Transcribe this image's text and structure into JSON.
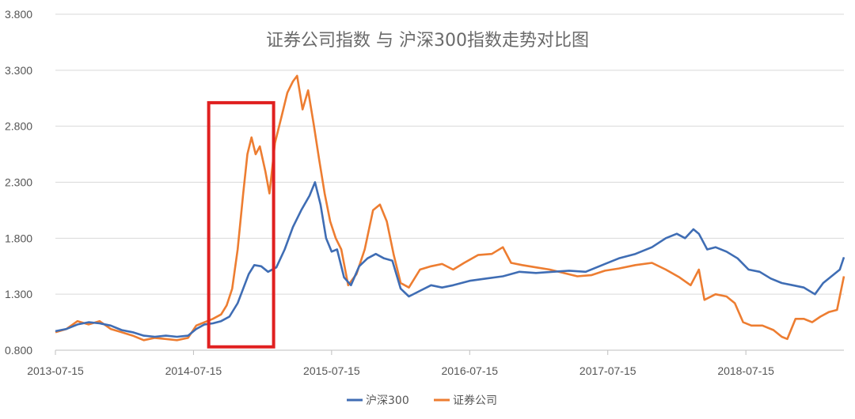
{
  "chart_data": {
    "type": "line",
    "title": "证券公司指数 与 沪深300指数走势对比图",
    "xlabel": "",
    "ylabel": "",
    "ylim": [
      0.8,
      3.8
    ],
    "yticks": [
      "0.800",
      "1.300",
      "1.800",
      "2.300",
      "2.800",
      "3.300",
      "3.800"
    ],
    "xticks": [
      {
        "label": "2013-07-15",
        "x": 2013.54
      },
      {
        "label": "2014-07-15",
        "x": 2014.54
      },
      {
        "label": "2015-07-15",
        "x": 2015.54
      },
      {
        "label": "2016-07-15",
        "x": 2016.54
      },
      {
        "label": "2017-07-15",
        "x": 2017.54
      },
      {
        "label": "2018-07-15",
        "x": 2018.54
      }
    ],
    "xlim": [
      2013.54,
      2019.25
    ],
    "grid": "horizontal",
    "legend_position": "bottom",
    "highlight_box": {
      "x_start": 2014.65,
      "x_end": 2015.12,
      "y_bottom": 0.83,
      "y_top": 3.01,
      "color": "#e02020"
    },
    "series": [
      {
        "name": "沪深300",
        "color": "#3f6db4",
        "points": [
          [
            2013.54,
            0.97
          ],
          [
            2013.62,
            0.99
          ],
          [
            2013.7,
            1.03
          ],
          [
            2013.78,
            1.05
          ],
          [
            2013.86,
            1.04
          ],
          [
            2013.94,
            1.02
          ],
          [
            2014.02,
            0.98
          ],
          [
            2014.1,
            0.96
          ],
          [
            2014.18,
            0.93
          ],
          [
            2014.26,
            0.92
          ],
          [
            2014.34,
            0.93
          ],
          [
            2014.42,
            0.92
          ],
          [
            2014.5,
            0.93
          ],
          [
            2014.56,
            0.99
          ],
          [
            2014.62,
            1.03
          ],
          [
            2014.68,
            1.04
          ],
          [
            2014.74,
            1.06
          ],
          [
            2014.8,
            1.1
          ],
          [
            2014.86,
            1.22
          ],
          [
            2014.9,
            1.35
          ],
          [
            2014.94,
            1.48
          ],
          [
            2014.98,
            1.56
          ],
          [
            2015.03,
            1.55
          ],
          [
            2015.08,
            1.5
          ],
          [
            2015.14,
            1.54
          ],
          [
            2015.2,
            1.7
          ],
          [
            2015.26,
            1.9
          ],
          [
            2015.32,
            2.05
          ],
          [
            2015.38,
            2.18
          ],
          [
            2015.42,
            2.3
          ],
          [
            2015.46,
            2.1
          ],
          [
            2015.5,
            1.8
          ],
          [
            2015.54,
            1.68
          ],
          [
            2015.58,
            1.7
          ],
          [
            2015.63,
            1.45
          ],
          [
            2015.68,
            1.38
          ],
          [
            2015.74,
            1.55
          ],
          [
            2015.8,
            1.62
          ],
          [
            2015.86,
            1.66
          ],
          [
            2015.92,
            1.62
          ],
          [
            2015.98,
            1.6
          ],
          [
            2016.04,
            1.35
          ],
          [
            2016.1,
            1.28
          ],
          [
            2016.18,
            1.33
          ],
          [
            2016.26,
            1.38
          ],
          [
            2016.34,
            1.36
          ],
          [
            2016.42,
            1.38
          ],
          [
            2016.54,
            1.42
          ],
          [
            2016.66,
            1.44
          ],
          [
            2016.78,
            1.46
          ],
          [
            2016.9,
            1.5
          ],
          [
            2017.02,
            1.49
          ],
          [
            2017.14,
            1.5
          ],
          [
            2017.26,
            1.51
          ],
          [
            2017.38,
            1.5
          ],
          [
            2017.5,
            1.56
          ],
          [
            2017.62,
            1.62
          ],
          [
            2017.74,
            1.66
          ],
          [
            2017.86,
            1.72
          ],
          [
            2017.96,
            1.8
          ],
          [
            2018.04,
            1.84
          ],
          [
            2018.1,
            1.8
          ],
          [
            2018.16,
            1.88
          ],
          [
            2018.2,
            1.84
          ],
          [
            2018.26,
            1.7
          ],
          [
            2018.32,
            1.72
          ],
          [
            2018.4,
            1.68
          ],
          [
            2018.48,
            1.62
          ],
          [
            2018.56,
            1.52
          ],
          [
            2018.64,
            1.5
          ],
          [
            2018.72,
            1.44
          ],
          [
            2018.8,
            1.4
          ],
          [
            2018.88,
            1.38
          ],
          [
            2018.96,
            1.36
          ],
          [
            2019.04,
            1.3
          ],
          [
            2019.1,
            1.4
          ],
          [
            2019.16,
            1.46
          ],
          [
            2019.22,
            1.52
          ],
          [
            2019.25,
            1.63
          ]
        ]
      },
      {
        "name": "证券公司",
        "color": "#ed7d31",
        "points": [
          [
            2013.54,
            0.96
          ],
          [
            2013.62,
            0.99
          ],
          [
            2013.7,
            1.06
          ],
          [
            2013.78,
            1.03
          ],
          [
            2013.86,
            1.06
          ],
          [
            2013.94,
            0.99
          ],
          [
            2014.02,
            0.96
          ],
          [
            2014.1,
            0.93
          ],
          [
            2014.18,
            0.89
          ],
          [
            2014.26,
            0.91
          ],
          [
            2014.34,
            0.9
          ],
          [
            2014.42,
            0.89
          ],
          [
            2014.5,
            0.91
          ],
          [
            2014.56,
            1.02
          ],
          [
            2014.62,
            1.05
          ],
          [
            2014.68,
            1.08
          ],
          [
            2014.74,
            1.12
          ],
          [
            2014.78,
            1.2
          ],
          [
            2014.82,
            1.35
          ],
          [
            2014.86,
            1.7
          ],
          [
            2014.9,
            2.2
          ],
          [
            2014.93,
            2.55
          ],
          [
            2014.96,
            2.7
          ],
          [
            2014.99,
            2.55
          ],
          [
            2015.02,
            2.62
          ],
          [
            2015.06,
            2.4
          ],
          [
            2015.09,
            2.2
          ],
          [
            2015.13,
            2.65
          ],
          [
            2015.18,
            2.9
          ],
          [
            2015.22,
            3.1
          ],
          [
            2015.26,
            3.2
          ],
          [
            2015.29,
            3.25
          ],
          [
            2015.33,
            2.95
          ],
          [
            2015.37,
            3.12
          ],
          [
            2015.41,
            2.82
          ],
          [
            2015.45,
            2.5
          ],
          [
            2015.49,
            2.2
          ],
          [
            2015.53,
            1.95
          ],
          [
            2015.57,
            1.8
          ],
          [
            2015.61,
            1.7
          ],
          [
            2015.66,
            1.38
          ],
          [
            2015.72,
            1.48
          ],
          [
            2015.78,
            1.7
          ],
          [
            2015.84,
            2.05
          ],
          [
            2015.89,
            2.1
          ],
          [
            2015.94,
            1.95
          ],
          [
            2015.99,
            1.65
          ],
          [
            2016.04,
            1.4
          ],
          [
            2016.1,
            1.36
          ],
          [
            2016.18,
            1.52
          ],
          [
            2016.26,
            1.55
          ],
          [
            2016.34,
            1.57
          ],
          [
            2016.42,
            1.52
          ],
          [
            2016.5,
            1.58
          ],
          [
            2016.6,
            1.65
          ],
          [
            2016.7,
            1.66
          ],
          [
            2016.78,
            1.72
          ],
          [
            2016.84,
            1.58
          ],
          [
            2016.92,
            1.56
          ],
          [
            2017.02,
            1.54
          ],
          [
            2017.12,
            1.52
          ],
          [
            2017.22,
            1.49
          ],
          [
            2017.32,
            1.46
          ],
          [
            2017.42,
            1.47
          ],
          [
            2017.52,
            1.51
          ],
          [
            2017.62,
            1.53
          ],
          [
            2017.74,
            1.56
          ],
          [
            2017.86,
            1.58
          ],
          [
            2017.96,
            1.52
          ],
          [
            2018.06,
            1.45
          ],
          [
            2018.14,
            1.38
          ],
          [
            2018.2,
            1.52
          ],
          [
            2018.24,
            1.25
          ],
          [
            2018.32,
            1.3
          ],
          [
            2018.4,
            1.28
          ],
          [
            2018.46,
            1.22
          ],
          [
            2018.52,
            1.05
          ],
          [
            2018.58,
            1.02
          ],
          [
            2018.66,
            1.02
          ],
          [
            2018.74,
            0.98
          ],
          [
            2018.8,
            0.92
          ],
          [
            2018.84,
            0.9
          ],
          [
            2018.9,
            1.08
          ],
          [
            2018.96,
            1.08
          ],
          [
            2019.02,
            1.05
          ],
          [
            2019.08,
            1.1
          ],
          [
            2019.14,
            1.14
          ],
          [
            2019.2,
            1.16
          ],
          [
            2019.25,
            1.46
          ]
        ]
      }
    ]
  }
}
